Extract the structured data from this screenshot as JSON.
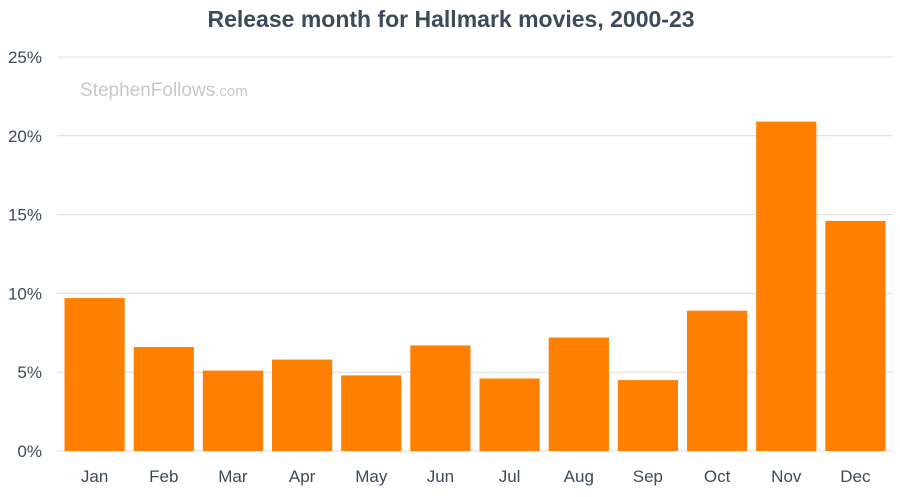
{
  "watermark": {
    "main": "StephenFollows",
    "suffix": ".com"
  },
  "chart_data": {
    "type": "bar",
    "title": "Release month for Hallmark movies, 2000-23",
    "xlabel": "",
    "ylabel": "",
    "categories": [
      "Jan",
      "Feb",
      "Mar",
      "Apr",
      "May",
      "Jun",
      "Jul",
      "Aug",
      "Sep",
      "Oct",
      "Nov",
      "Dec"
    ],
    "values": [
      9.7,
      6.6,
      5.1,
      5.8,
      4.8,
      6.7,
      4.6,
      7.2,
      4.5,
      8.9,
      20.9,
      14.6
    ],
    "ylim": [
      0,
      25
    ],
    "yticks": [
      0,
      5,
      10,
      15,
      20,
      25
    ],
    "ytick_labels": [
      "0%",
      "5%",
      "10%",
      "15%",
      "20%",
      "25%"
    ],
    "grid": true,
    "bar_color": "#ff7f00",
    "text_color": "#3d4a5a",
    "grid_color": "#dcdcdc"
  }
}
